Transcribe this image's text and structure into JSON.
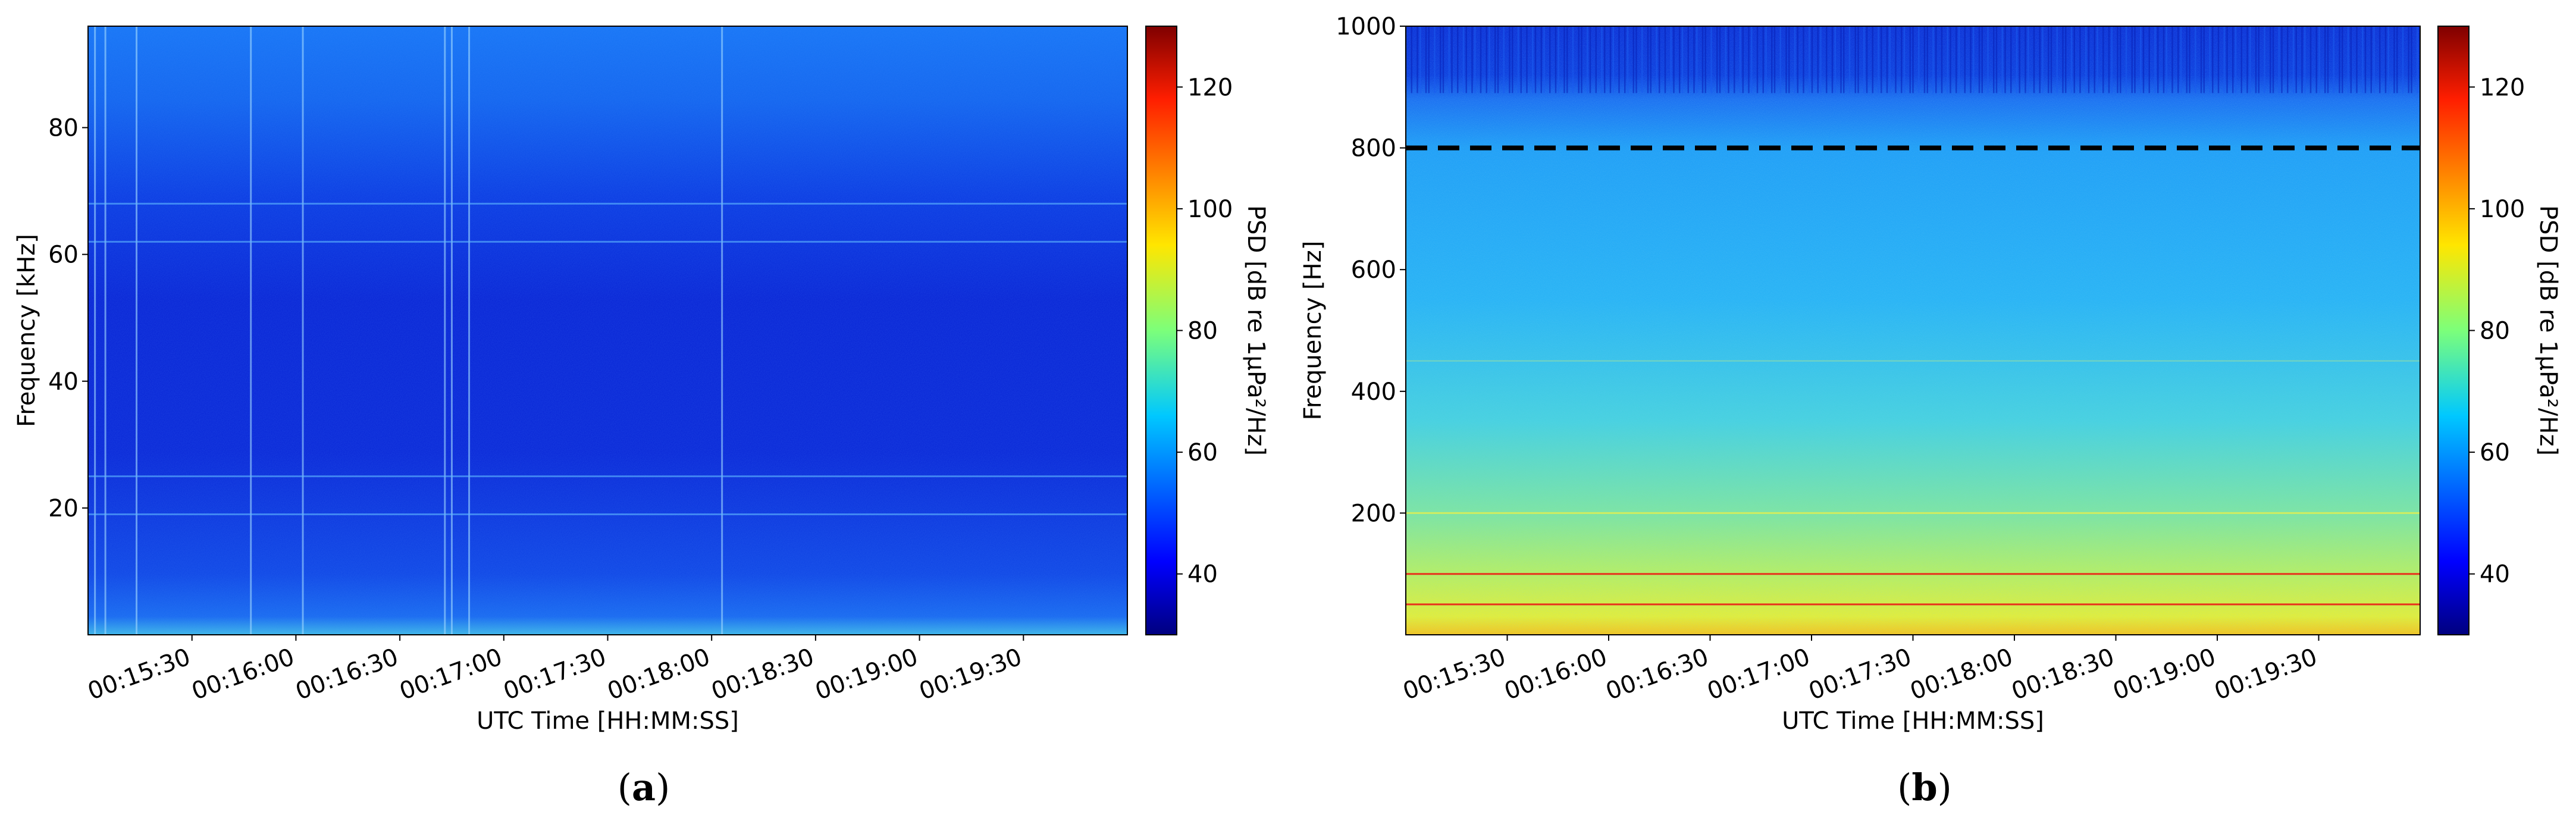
{
  "chart_data": [
    {
      "type": "heatmap",
      "panel_label": "a",
      "xlabel": "UTC Time [HH:MM:SS]",
      "ylabel": "Frequency [kHz]",
      "x_ticks": [
        "00:15:30",
        "00:16:00",
        "00:16:30",
        "00:17:00",
        "00:17:30",
        "00:18:00",
        "00:18:30",
        "00:19:00",
        "00:19:30"
      ],
      "x_tick_seconds": [
        930,
        960,
        990,
        1020,
        1050,
        1080,
        1110,
        1140,
        1170
      ],
      "xlim_seconds": [
        900,
        1200
      ],
      "y_ticks": [
        20,
        40,
        60,
        80
      ],
      "ylim": [
        0,
        96
      ],
      "colorbar": {
        "label": "PSD [dB re 1μPa²/Hz]",
        "ticks": [
          40,
          60,
          80,
          100,
          120
        ],
        "range": [
          30,
          130
        ],
        "colormap": "jet"
      },
      "vertical_streaks_seconds": [
        902,
        905,
        914,
        947,
        962,
        1003,
        1005,
        1010,
        1083
      ],
      "horizontal_lines": [
        19,
        25,
        62,
        68
      ]
    },
    {
      "type": "heatmap",
      "panel_label": "b",
      "xlabel": "UTC Time [HH:MM:SS]",
      "ylabel": "Frequency [Hz]",
      "x_ticks": [
        "00:15:30",
        "00:16:00",
        "00:16:30",
        "00:17:00",
        "00:17:30",
        "00:18:00",
        "00:18:30",
        "00:19:00",
        "00:19:30"
      ],
      "x_tick_seconds": [
        930,
        960,
        990,
        1020,
        1050,
        1080,
        1110,
        1140,
        1170
      ],
      "xlim_seconds": [
        900,
        1200
      ],
      "y_ticks": [
        200,
        400,
        600,
        800,
        1000
      ],
      "ylim": [
        0,
        1000
      ],
      "colorbar": {
        "label": "PSD [dB re 1μPa²/Hz]",
        "ticks": [
          40,
          60,
          80,
          100,
          120
        ],
        "range": [
          30,
          130
        ],
        "colormap": "jet"
      },
      "dashed_line_hz": 800,
      "red_lines_hz": [
        50,
        100
      ]
    }
  ]
}
